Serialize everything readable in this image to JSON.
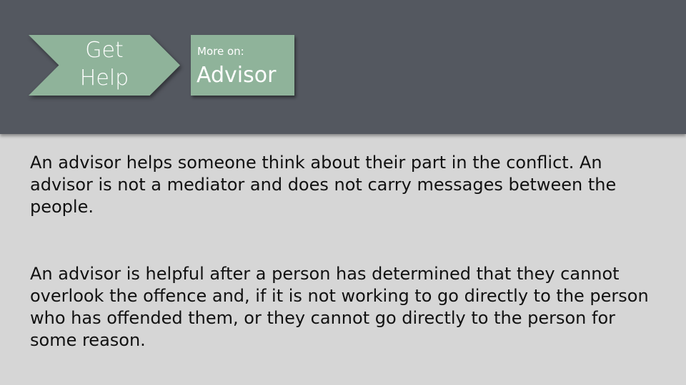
{
  "header": {
    "chevron_label_line1": "Get",
    "chevron_label_line2": "Help",
    "more_prefix": "More on:",
    "more_title": "Advisor"
  },
  "content": {
    "paragraphs": [
      "An advisor helps someone think about their part in the conflict. An advisor is not a mediator and does not carry messages between the people.",
      "An advisor is helpful after a person has determined that they cannot overlook the offence and, if it is not working to go directly to the person who has offended them, or they cannot go directly to the person for some reason."
    ]
  },
  "colors": {
    "header_bg": "#545860",
    "accent_green": "#8fb39a",
    "body_bg": "#d6d6d6"
  }
}
